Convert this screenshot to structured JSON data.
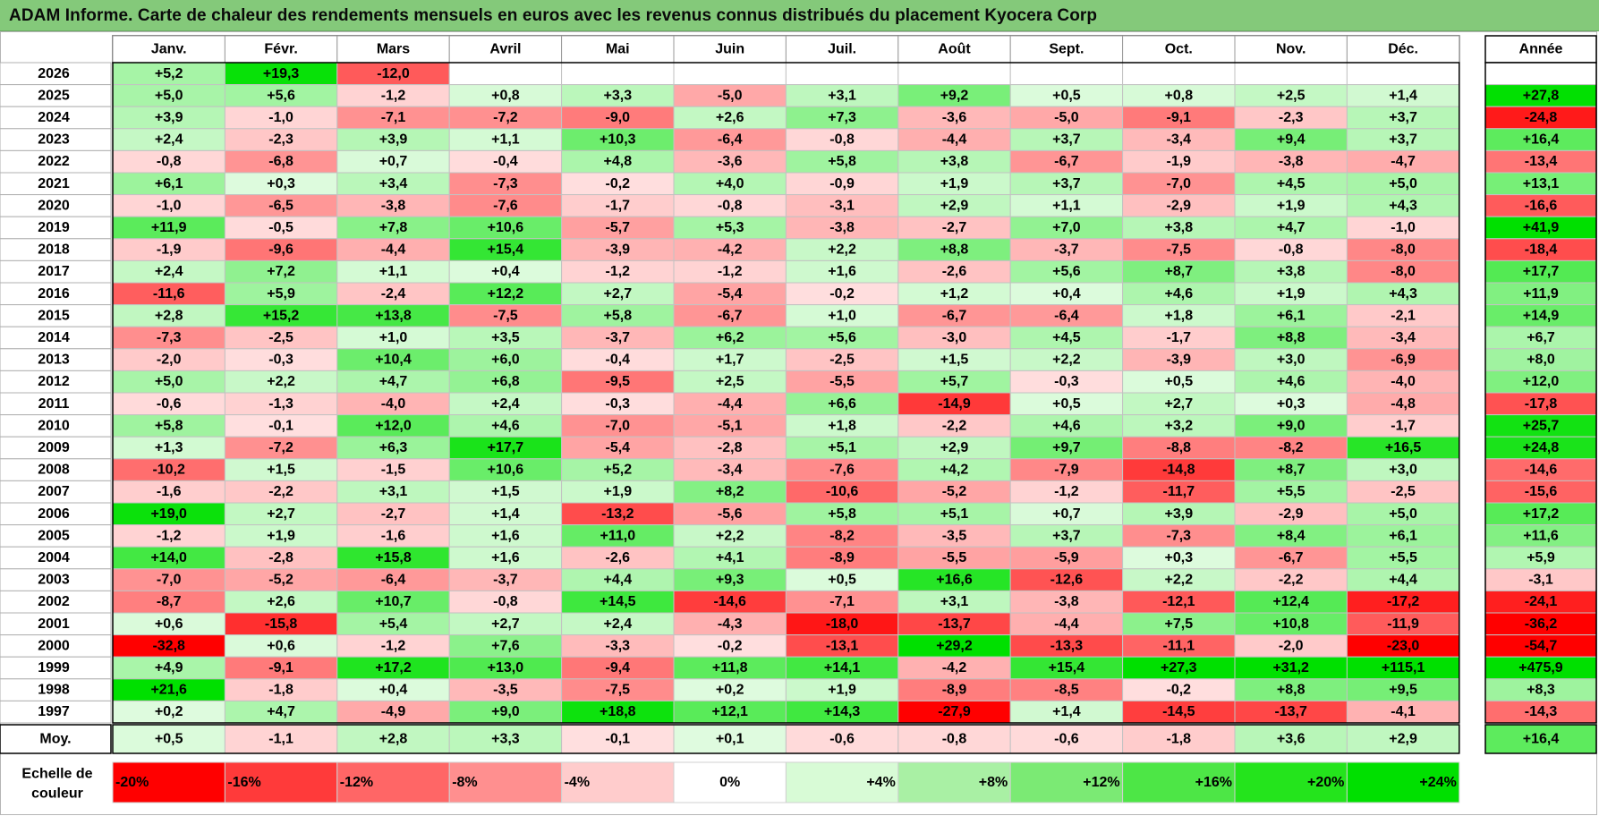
{
  "title": "ADAM Informe. Carte de chaleur des rendements mensuels en euros avec les revenus connus distribués du placement Kyocera Corp",
  "chart_data": {
    "type": "heatmap",
    "title": "ADAM Informe. Carte de chaleur des rendements mensuels en euros avec les revenus connus distribués du placement Kyocera Corp",
    "columns": [
      "Janv.",
      "Févr.",
      "Mars",
      "Avril",
      "Mai",
      "Juin",
      "Juil.",
      "Août",
      "Sept.",
      "Oct.",
      "Nov.",
      "Déc."
    ],
    "year_column_label": "Année",
    "rows": [
      {
        "year": "2026",
        "months": [
          "+5,2",
          "+19,3",
          "-12,0",
          "",
          "",
          "",
          "",
          "",
          "",
          "",
          "",
          ""
        ],
        "annual": ""
      },
      {
        "year": "2025",
        "months": [
          "+5,0",
          "+5,6",
          "-1,2",
          "+0,8",
          "+3,3",
          "-5,0",
          "+3,1",
          "+9,2",
          "+0,5",
          "+0,8",
          "+2,5",
          "+1,4"
        ],
        "annual": "+27,8"
      },
      {
        "year": "2024",
        "months": [
          "+3,9",
          "-1,0",
          "-7,1",
          "-7,2",
          "-9,0",
          "+2,6",
          "+7,3",
          "-3,6",
          "-5,0",
          "-9,1",
          "-2,3",
          "+3,7"
        ],
        "annual": "-24,8"
      },
      {
        "year": "2023",
        "months": [
          "+2,4",
          "-2,3",
          "+3,9",
          "+1,1",
          "+10,3",
          "-6,4",
          "-0,8",
          "-4,4",
          "+3,7",
          "-3,4",
          "+9,4",
          "+3,7"
        ],
        "annual": "+16,4"
      },
      {
        "year": "2022",
        "months": [
          "-0,8",
          "-6,8",
          "+0,7",
          "-0,4",
          "+4,8",
          "-3,6",
          "+5,8",
          "+3,8",
          "-6,7",
          "-1,9",
          "-3,8",
          "-4,7"
        ],
        "annual": "-13,4"
      },
      {
        "year": "2021",
        "months": [
          "+6,1",
          "+0,3",
          "+3,4",
          "-7,3",
          "-0,2",
          "+4,0",
          "-0,9",
          "+1,9",
          "+3,7",
          "-7,0",
          "+4,5",
          "+5,0"
        ],
        "annual": "+13,1"
      },
      {
        "year": "2020",
        "months": [
          "-1,0",
          "-6,5",
          "-3,8",
          "-7,6",
          "-1,7",
          "-0,8",
          "-3,1",
          "+2,9",
          "+1,1",
          "-2,9",
          "+1,9",
          "+4,3"
        ],
        "annual": "-16,6"
      },
      {
        "year": "2019",
        "months": [
          "+11,9",
          "-0,5",
          "+7,8",
          "+10,6",
          "-5,7",
          "+5,3",
          "-3,8",
          "-2,7",
          "+7,0",
          "+3,8",
          "+4,7",
          "-1,0"
        ],
        "annual": "+41,9"
      },
      {
        "year": "2018",
        "months": [
          "-1,9",
          "-9,6",
          "-4,4",
          "+15,4",
          "-3,9",
          "-4,2",
          "+2,2",
          "+8,8",
          "-3,7",
          "-7,5",
          "-0,8",
          "-8,0"
        ],
        "annual": "-18,4"
      },
      {
        "year": "2017",
        "months": [
          "+2,4",
          "+7,2",
          "+1,1",
          "+0,4",
          "-1,2",
          "-1,2",
          "+1,6",
          "-2,6",
          "+5,6",
          "+8,7",
          "+3,8",
          "-8,0"
        ],
        "annual": "+17,7"
      },
      {
        "year": "2016",
        "months": [
          "-11,6",
          "+5,9",
          "-2,4",
          "+12,2",
          "+2,7",
          "-5,4",
          "-0,2",
          "+1,2",
          "+0,4",
          "+4,6",
          "+1,9",
          "+4,3"
        ],
        "annual": "+11,9"
      },
      {
        "year": "2015",
        "months": [
          "+2,8",
          "+15,2",
          "+13,8",
          "-7,5",
          "+5,8",
          "-6,7",
          "+1,0",
          "-6,7",
          "-6,4",
          "+1,8",
          "+6,1",
          "-2,1"
        ],
        "annual": "+14,9"
      },
      {
        "year": "2014",
        "months": [
          "-7,3",
          "-2,5",
          "+1,0",
          "+3,5",
          "-3,7",
          "+6,2",
          "+5,6",
          "-3,0",
          "+4,5",
          "-1,7",
          "+8,8",
          "-3,4"
        ],
        "annual": "+6,7"
      },
      {
        "year": "2013",
        "months": [
          "-2,0",
          "-0,3",
          "+10,4",
          "+6,0",
          "-0,4",
          "+1,7",
          "-2,5",
          "+1,5",
          "+2,2",
          "-3,9",
          "+3,0",
          "-6,9"
        ],
        "annual": "+8,0"
      },
      {
        "year": "2012",
        "months": [
          "+5,0",
          "+2,2",
          "+4,7",
          "+6,8",
          "-9,5",
          "+2,5",
          "-5,5",
          "+5,7",
          "-0,3",
          "+0,5",
          "+4,6",
          "-4,0"
        ],
        "annual": "+12,0"
      },
      {
        "year": "2011",
        "months": [
          "-0,6",
          "-1,3",
          "-4,0",
          "+2,4",
          "-0,3",
          "-4,4",
          "+6,6",
          "-14,9",
          "+0,5",
          "+2,7",
          "+0,3",
          "-4,8"
        ],
        "annual": "-17,8"
      },
      {
        "year": "2010",
        "months": [
          "+5,8",
          "-0,1",
          "+12,0",
          "+4,6",
          "-7,0",
          "-5,1",
          "+1,8",
          "-2,2",
          "+4,6",
          "+3,2",
          "+9,0",
          "-1,7"
        ],
        "annual": "+25,7"
      },
      {
        "year": "2009",
        "months": [
          "+1,3",
          "-7,2",
          "+6,3",
          "+17,7",
          "-5,4",
          "-2,8",
          "+5,1",
          "+2,9",
          "+9,7",
          "-8,8",
          "-8,2",
          "+16,5"
        ],
        "annual": "+24,8"
      },
      {
        "year": "2008",
        "months": [
          "-10,2",
          "+1,5",
          "-1,5",
          "+10,6",
          "+5,2",
          "-3,4",
          "-7,6",
          "+4,2",
          "-7,9",
          "-14,8",
          "+8,7",
          "+3,0"
        ],
        "annual": "-14,6"
      },
      {
        "year": "2007",
        "months": [
          "-1,6",
          "-2,2",
          "+3,1",
          "+1,5",
          "+1,9",
          "+8,2",
          "-10,6",
          "-5,2",
          "-1,2",
          "-11,7",
          "+5,5",
          "-2,5"
        ],
        "annual": "-15,6"
      },
      {
        "year": "2006",
        "months": [
          "+19,0",
          "+2,7",
          "-2,7",
          "+1,4",
          "-13,2",
          "-5,6",
          "+5,8",
          "+5,1",
          "+0,7",
          "+3,9",
          "-2,9",
          "+5,0"
        ],
        "annual": "+17,2"
      },
      {
        "year": "2005",
        "months": [
          "-1,2",
          "+1,9",
          "-1,6",
          "+1,6",
          "+11,0",
          "+2,2",
          "-8,2",
          "-3,5",
          "+3,7",
          "-7,3",
          "+8,4",
          "+6,1"
        ],
        "annual": "+11,6"
      },
      {
        "year": "2004",
        "months": [
          "+14,0",
          "-2,8",
          "+15,8",
          "+1,6",
          "-2,6",
          "+4,1",
          "-8,9",
          "-5,5",
          "-5,9",
          "+0,3",
          "-6,7",
          "+5,5"
        ],
        "annual": "+5,9"
      },
      {
        "year": "2003",
        "months": [
          "-7,0",
          "-5,2",
          "-6,4",
          "-3,7",
          "+4,4",
          "+9,3",
          "+0,5",
          "+16,6",
          "-12,6",
          "+2,2",
          "-2,2",
          "+4,4"
        ],
        "annual": "-3,1"
      },
      {
        "year": "2002",
        "months": [
          "-8,7",
          "+2,6",
          "+10,7",
          "-0,8",
          "+14,5",
          "-14,6",
          "-7,1",
          "+3,1",
          "-3,8",
          "-12,1",
          "+12,4",
          "-17,2"
        ],
        "annual": "-24,1"
      },
      {
        "year": "2001",
        "months": [
          "+0,6",
          "-15,8",
          "+5,4",
          "+2,7",
          "+2,4",
          "-4,3",
          "-18,0",
          "-13,7",
          "-4,4",
          "+7,5",
          "+10,8",
          "-11,9"
        ],
        "annual": "-36,2"
      },
      {
        "year": "2000",
        "months": [
          "-32,8",
          "+0,6",
          "-1,2",
          "+7,6",
          "-3,3",
          "-0,2",
          "-13,1",
          "+29,2",
          "-13,3",
          "-11,1",
          "-2,0",
          "-23,0"
        ],
        "annual": "-54,7"
      },
      {
        "year": "1999",
        "months": [
          "+4,9",
          "-9,1",
          "+17,2",
          "+13,0",
          "-9,4",
          "+11,8",
          "+14,1",
          "-4,2",
          "+15,4",
          "+27,3",
          "+31,2",
          "+115,1"
        ],
        "annual": "+475,9"
      },
      {
        "year": "1998",
        "months": [
          "+21,6",
          "-1,8",
          "+0,4",
          "-3,5",
          "-7,5",
          "+0,2",
          "+1,9",
          "-8,9",
          "-8,5",
          "-0,2",
          "+8,8",
          "+9,5"
        ],
        "annual": "+8,3"
      },
      {
        "year": "1997",
        "months": [
          "+0,2",
          "+4,7",
          "-4,9",
          "+9,0",
          "+18,8",
          "+12,1",
          "+14,3",
          "-27,9",
          "+1,4",
          "-14,5",
          "-13,7",
          "-4,1"
        ],
        "annual": "-14,3"
      }
    ],
    "average": {
      "label": "Moy.",
      "months": [
        "+0,5",
        "-1,1",
        "+2,8",
        "+3,3",
        "-0,1",
        "+0,1",
        "-0,6",
        "-0,8",
        "-0,6",
        "-1,8",
        "+3,6",
        "+2,9"
      ],
      "annual": "+16,4"
    },
    "scale": {
      "label": "Echelle de couleur",
      "steps": [
        "-20%",
        "-16%",
        "-12%",
        "-8%",
        "-4%",
        "0%",
        "+4%",
        "+8%",
        "+12%",
        "+16%",
        "+20%",
        "+24%"
      ]
    },
    "colors": {
      "negative_max": "#ff0000",
      "positive_max": "#00e000",
      "neutral": "#ffffff",
      "title_bg": "#84c97a"
    }
  }
}
